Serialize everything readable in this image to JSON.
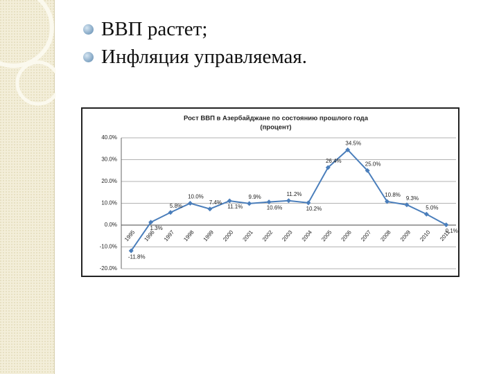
{
  "bullets": [
    "ВВП растет;",
    "Инфляция управляемая."
  ],
  "chart_data": {
    "type": "line",
    "title": "Рост ВВП в Азербайджане по состоянию прошлого года",
    "subtitle": "(процент)",
    "categories": [
      "1995",
      "1996",
      "1997",
      "1998",
      "1999",
      "2000",
      "2001",
      "2002",
      "2003",
      "2004",
      "2005",
      "2006",
      "2007",
      "2008",
      "2009",
      "2010",
      "2011"
    ],
    "series": [
      {
        "name": "Рост ВВП",
        "color": "#4a7ebb",
        "values": [
          -11.8,
          1.3,
          5.8,
          10.0,
          7.4,
          11.1,
          9.9,
          10.6,
          11.2,
          10.2,
          26.4,
          34.5,
          25.0,
          10.8,
          9.3,
          5.0,
          0.1
        ],
        "value_labels": [
          "-11.8%",
          "1.3%",
          "5.8%",
          "10.0%",
          "7.4%",
          "11.1%",
          "9.9%",
          "10.6%",
          "11.2%",
          "10.2%",
          "26.4%",
          "34.5%",
          "25.0%",
          "10.8%",
          "9.3%",
          "5.0%",
          "0.1%"
        ]
      }
    ],
    "ylim": [
      -20,
      40
    ],
    "yticks": [
      {
        "value": -20,
        "label": "-20.0%"
      },
      {
        "value": -10,
        "label": "-10.0%"
      },
      {
        "value": 0,
        "label": "0.0%"
      },
      {
        "value": 10,
        "label": "10.0%"
      },
      {
        "value": 20,
        "label": "20.0%"
      },
      {
        "value": 30,
        "label": "30.0%"
      },
      {
        "value": 40,
        "label": "40.0%"
      }
    ],
    "grid": true
  }
}
